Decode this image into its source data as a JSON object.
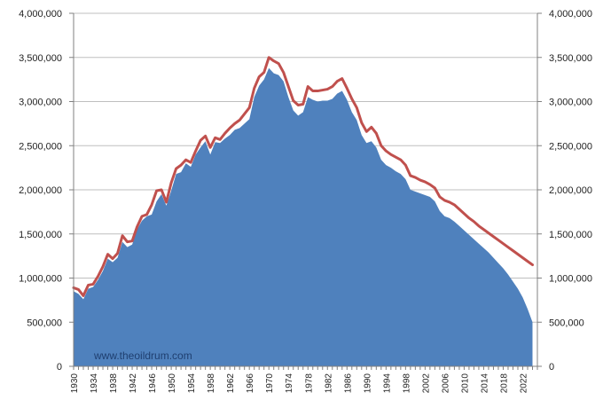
{
  "watermark": "www.theoildrum.com",
  "colors": {
    "area_fill": "#4f81bd",
    "line": "#c0504d",
    "grid": "#bfbfbf",
    "axis": "#808080",
    "background": "#ffffff"
  },
  "chart_data": {
    "type": "area",
    "title": "",
    "xlabel": "",
    "ylabel": "",
    "grid": "horizontal",
    "ylim": [
      0,
      4000000
    ],
    "xlim": [
      1930,
      2025
    ],
    "y_ticks": [
      0,
      500000,
      1000000,
      1500000,
      2000000,
      2500000,
      3000000,
      3500000,
      4000000
    ],
    "y_tick_labels": [
      "0",
      "500,000",
      "1,000,000",
      "1,500,000",
      "2,000,000",
      "2,500,000",
      "3,000,000",
      "3,500,000",
      "4,000,000"
    ],
    "x_tick_labels": [
      "1930",
      "1934",
      "1938",
      "1942",
      "1946",
      "1950",
      "1954",
      "1958",
      "1962",
      "1966",
      "1970",
      "1974",
      "1978",
      "1982",
      "1986",
      "1990",
      "1994",
      "1998",
      "2002",
      "2006",
      "2010",
      "2014",
      "2018",
      "2022"
    ],
    "series": [
      {
        "type": "area",
        "x": [
          1930,
          1931,
          1932,
          1933,
          1934,
          1935,
          1936,
          1937,
          1938,
          1939,
          1940,
          1941,
          1942,
          1943,
          1944,
          1945,
          1946,
          1947,
          1948,
          1949,
          1950,
          1951,
          1952,
          1953,
          1954,
          1955,
          1956,
          1957,
          1958,
          1959,
          1960,
          1961,
          1962,
          1963,
          1964,
          1965,
          1966,
          1967,
          1968,
          1969,
          1970,
          1971,
          1972,
          1973,
          1974,
          1975,
          1976,
          1977,
          1978,
          1979,
          1980,
          1981,
          1982,
          1983,
          1984,
          1985,
          1986,
          1987,
          1988,
          1989,
          1990,
          1991,
          1992,
          1993,
          1994,
          1995,
          1996,
          1997,
          1998,
          1999,
          2000,
          2001,
          2002,
          2003,
          2004,
          2005,
          2006,
          2007,
          2008,
          2009,
          2010,
          2011,
          2012,
          2013,
          2014,
          2015,
          2016,
          2017,
          2018,
          2019,
          2020,
          2021,
          2022,
          2023,
          2024
        ],
        "values": [
          850000,
          820000,
          760000,
          880000,
          900000,
          980000,
          1080000,
          1220000,
          1180000,
          1230000,
          1410000,
          1350000,
          1380000,
          1550000,
          1650000,
          1700000,
          1720000,
          1870000,
          1950000,
          1820000,
          1990000,
          2180000,
          2200000,
          2300000,
          2260000,
          2400000,
          2480000,
          2550000,
          2400000,
          2540000,
          2530000,
          2580000,
          2620000,
          2680000,
          2700000,
          2750000,
          2800000,
          3050000,
          3180000,
          3250000,
          3380000,
          3320000,
          3300000,
          3230000,
          3050000,
          2900000,
          2840000,
          2880000,
          3050000,
          3020000,
          3000000,
          3010000,
          3010000,
          3030000,
          3090000,
          3120000,
          3020000,
          2880000,
          2790000,
          2620000,
          2530000,
          2550000,
          2480000,
          2340000,
          2280000,
          2250000,
          2210000,
          2180000,
          2120000,
          2000000,
          1980000,
          1960000,
          1940000,
          1920000,
          1870000,
          1760000,
          1700000,
          1680000,
          1640000,
          1590000,
          1540000,
          1490000,
          1440000,
          1390000,
          1340000,
          1290000,
          1230000,
          1170000,
          1110000,
          1040000,
          960000,
          880000,
          780000,
          650000,
          500000
        ]
      },
      {
        "type": "line",
        "x": [
          1930,
          1931,
          1932,
          1933,
          1934,
          1935,
          1936,
          1937,
          1938,
          1939,
          1940,
          1941,
          1942,
          1943,
          1944,
          1945,
          1946,
          1947,
          1948,
          1949,
          1950,
          1951,
          1952,
          1953,
          1954,
          1955,
          1956,
          1957,
          1958,
          1959,
          1960,
          1961,
          1962,
          1963,
          1964,
          1965,
          1966,
          1967,
          1968,
          1969,
          1970,
          1971,
          1972,
          1973,
          1974,
          1975,
          1976,
          1977,
          1978,
          1979,
          1980,
          1981,
          1982,
          1983,
          1984,
          1985,
          1986,
          1987,
          1988,
          1989,
          1990,
          1991,
          1992,
          1993,
          1994,
          1995,
          1996,
          1997,
          1998,
          1999,
          2000,
          2001,
          2002,
          2003,
          2004,
          2005,
          2006,
          2007,
          2008,
          2009,
          2010,
          2011,
          2012,
          2013,
          2014,
          2015,
          2016,
          2017,
          2018,
          2019,
          2020,
          2021,
          2022,
          2023,
          2024
        ],
        "values": [
          890000,
          870000,
          800000,
          920000,
          930000,
          1020000,
          1130000,
          1270000,
          1220000,
          1280000,
          1480000,
          1410000,
          1420000,
          1580000,
          1700000,
          1720000,
          1830000,
          1990000,
          2000000,
          1860000,
          2080000,
          2240000,
          2280000,
          2340000,
          2310000,
          2440000,
          2560000,
          2610000,
          2480000,
          2590000,
          2570000,
          2640000,
          2700000,
          2750000,
          2790000,
          2860000,
          2930000,
          3150000,
          3280000,
          3330000,
          3500000,
          3460000,
          3430000,
          3330000,
          3170000,
          3010000,
          2960000,
          2970000,
          3170000,
          3120000,
          3120000,
          3130000,
          3140000,
          3170000,
          3230000,
          3260000,
          3150000,
          3030000,
          2930000,
          2760000,
          2660000,
          2710000,
          2640000,
          2500000,
          2440000,
          2400000,
          2370000,
          2340000,
          2280000,
          2160000,
          2140000,
          2110000,
          2090000,
          2060000,
          2020000,
          1920000,
          1880000,
          1860000,
          1830000,
          1780000,
          1730000,
          1680000,
          1640000,
          1590000,
          1550000,
          1510000,
          1470000,
          1430000,
          1390000,
          1350000,
          1310000,
          1270000,
          1230000,
          1190000,
          1150000
        ]
      }
    ]
  }
}
